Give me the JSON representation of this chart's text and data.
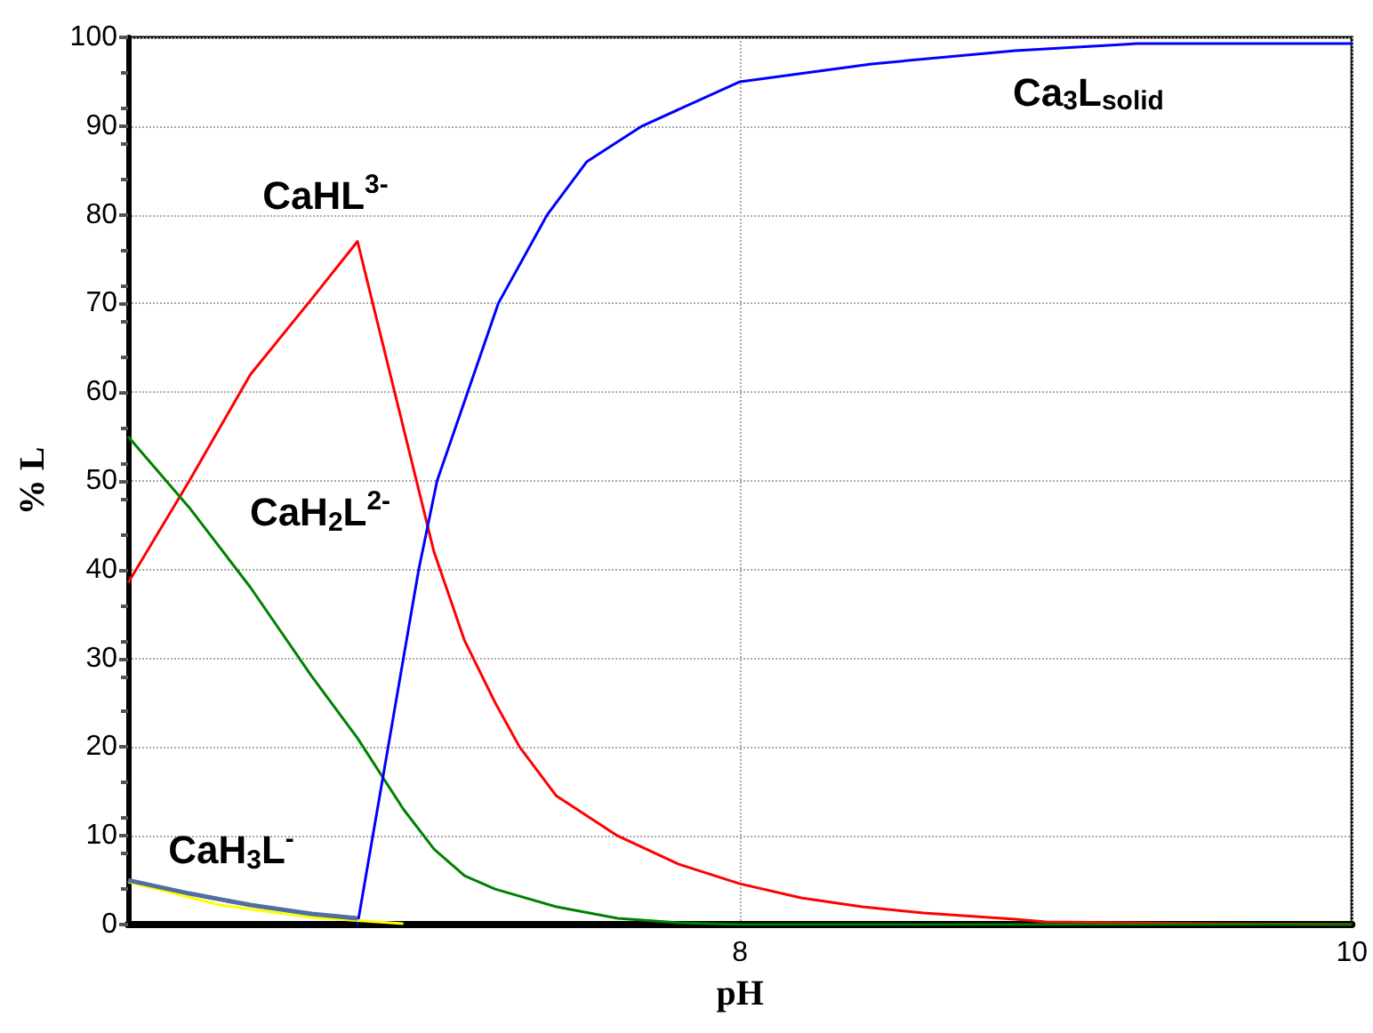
{
  "chart_data": {
    "type": "line",
    "xlabel": "pH",
    "ylabel": "% L",
    "xlim": [
      6,
      10
    ],
    "xticks": [
      8,
      10
    ],
    "ylim": [
      0,
      100
    ],
    "yticks": [
      0,
      10,
      20,
      30,
      40,
      50,
      60,
      70,
      80,
      90,
      100
    ],
    "grid": true,
    "marker": "none",
    "line_style": "solid",
    "series": [
      {
        "color": "#ff0000",
        "x": [
          6,
          6.2,
          6.4,
          6.6,
          6.75,
          6.9,
          7.0,
          7.1,
          7.2,
          7.28,
          7.4,
          7.6,
          7.8,
          8.0,
          8.2,
          8.4,
          8.6,
          8.9,
          9.0,
          9.5,
          10
        ],
        "values": [
          38.5,
          50,
          62,
          70.5,
          77,
          56,
          42,
          32,
          25,
          20,
          14.5,
          10,
          6.8,
          4.6,
          3,
          2,
          1.3,
          0.6,
          0.3,
          0.1,
          0
        ]
      },
      {
        "color": "#008000",
        "x": [
          6,
          6.2,
          6.4,
          6.6,
          6.75,
          6.9,
          7.0,
          7.1,
          7.2,
          7.4,
          7.6,
          7.8,
          8.0,
          10
        ],
        "values": [
          55,
          47,
          38,
          28,
          21,
          13,
          8.5,
          5.5,
          4,
          2,
          0.7,
          0.2,
          0,
          0
        ]
      },
      {
        "color": "#0000ff",
        "x": [
          6.75,
          6.85,
          6.95,
          7.01,
          7.11,
          7.21,
          7.37,
          7.5,
          7.68,
          8.0,
          8.43,
          8.9,
          9.3,
          10
        ],
        "values": [
          0,
          20,
          40,
          50,
          60,
          70,
          80,
          86,
          90,
          95,
          97,
          98.5,
          99.3,
          99.3
        ]
      },
      {
        "color": "#ffff00",
        "x": [
          6,
          6.3,
          6.6,
          6.9
        ],
        "values": [
          4.8,
          2.2,
          0.8,
          0.1
        ]
      },
      {
        "color": "#4f6fa0",
        "x": [
          6,
          6.2,
          6.4,
          6.6,
          6.75
        ],
        "values": [
          5,
          3.5,
          2.2,
          1.2,
          0.7
        ]
      }
    ],
    "annotations": [
      "CaHL$^{3-}$",
      "CaH$_{2}$L$^{2-}$",
      "CaH$_{3}$L$^{-}$",
      "Ca$_{3}$L$_{solid}$"
    ]
  }
}
